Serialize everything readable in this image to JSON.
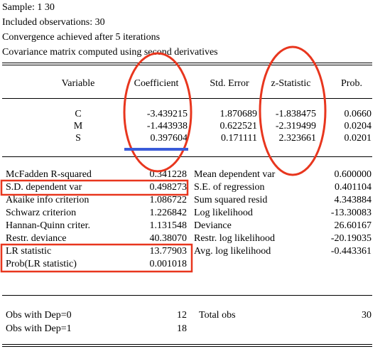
{
  "header": {
    "lines": [
      "Sample: 1 30",
      "Included observations: 30",
      "Convergence achieved after 5 iterations",
      "Covariance matrix computed using second derivatives"
    ]
  },
  "coef_table": {
    "columns": [
      "Variable",
      "Coefficient",
      "Std. Error",
      "z-Statistic",
      "Prob."
    ],
    "rows": [
      {
        "variable": "C",
        "coefficient": "-3.439215",
        "std_error": "1.870689",
        "z_stat": "-1.838475",
        "prob": "0.0660"
      },
      {
        "variable": "M",
        "coefficient": "-1.443938",
        "std_error": "0.622521",
        "z_stat": "-2.319499",
        "prob": "0.0204"
      },
      {
        "variable": "S",
        "coefficient": "0.397604",
        "std_error": "0.171111",
        "z_stat": "2.323661",
        "prob": "0.0201"
      }
    ]
  },
  "stats": {
    "left": [
      {
        "label": "McFadden R-squared",
        "value": "0.341228"
      },
      {
        "label": "S.D. dependent var",
        "value": "0.498273"
      },
      {
        "label": "Akaike info criterion",
        "value": "1.086722"
      },
      {
        "label": "Schwarz criterion",
        "value": "1.226842"
      },
      {
        "label": "Hannan-Quinn criter.",
        "value": "1.131548"
      },
      {
        "label": "Restr. deviance",
        "value": "40.38070"
      },
      {
        "label": "LR statistic",
        "value": "13.77903"
      },
      {
        "label": "Prob(LR statistic)",
        "value": "0.001018"
      }
    ],
    "right": [
      {
        "label": "Mean dependent var",
        "value": "0.600000"
      },
      {
        "label": "S.E. of regression",
        "value": "0.401104"
      },
      {
        "label": "Sum squared resid",
        "value": "4.343884"
      },
      {
        "label": "Log likelihood",
        "value": "-13.30083"
      },
      {
        "label": "Deviance",
        "value": "26.60167"
      },
      {
        "label": "Restr. log likelihood",
        "value": "-20.19035"
      },
      {
        "label": "Avg. log likelihood",
        "value": "-0.443361"
      }
    ]
  },
  "obs": {
    "dep0_label": "Obs with Dep=0",
    "dep0_value": "12",
    "dep1_label": "Obs with Dep=1",
    "dep1_value": "18",
    "total_label": "Total obs",
    "total_value": "30"
  },
  "annotation_colors": {
    "red": "#e8361e",
    "blue": "#3a5bd9"
  }
}
